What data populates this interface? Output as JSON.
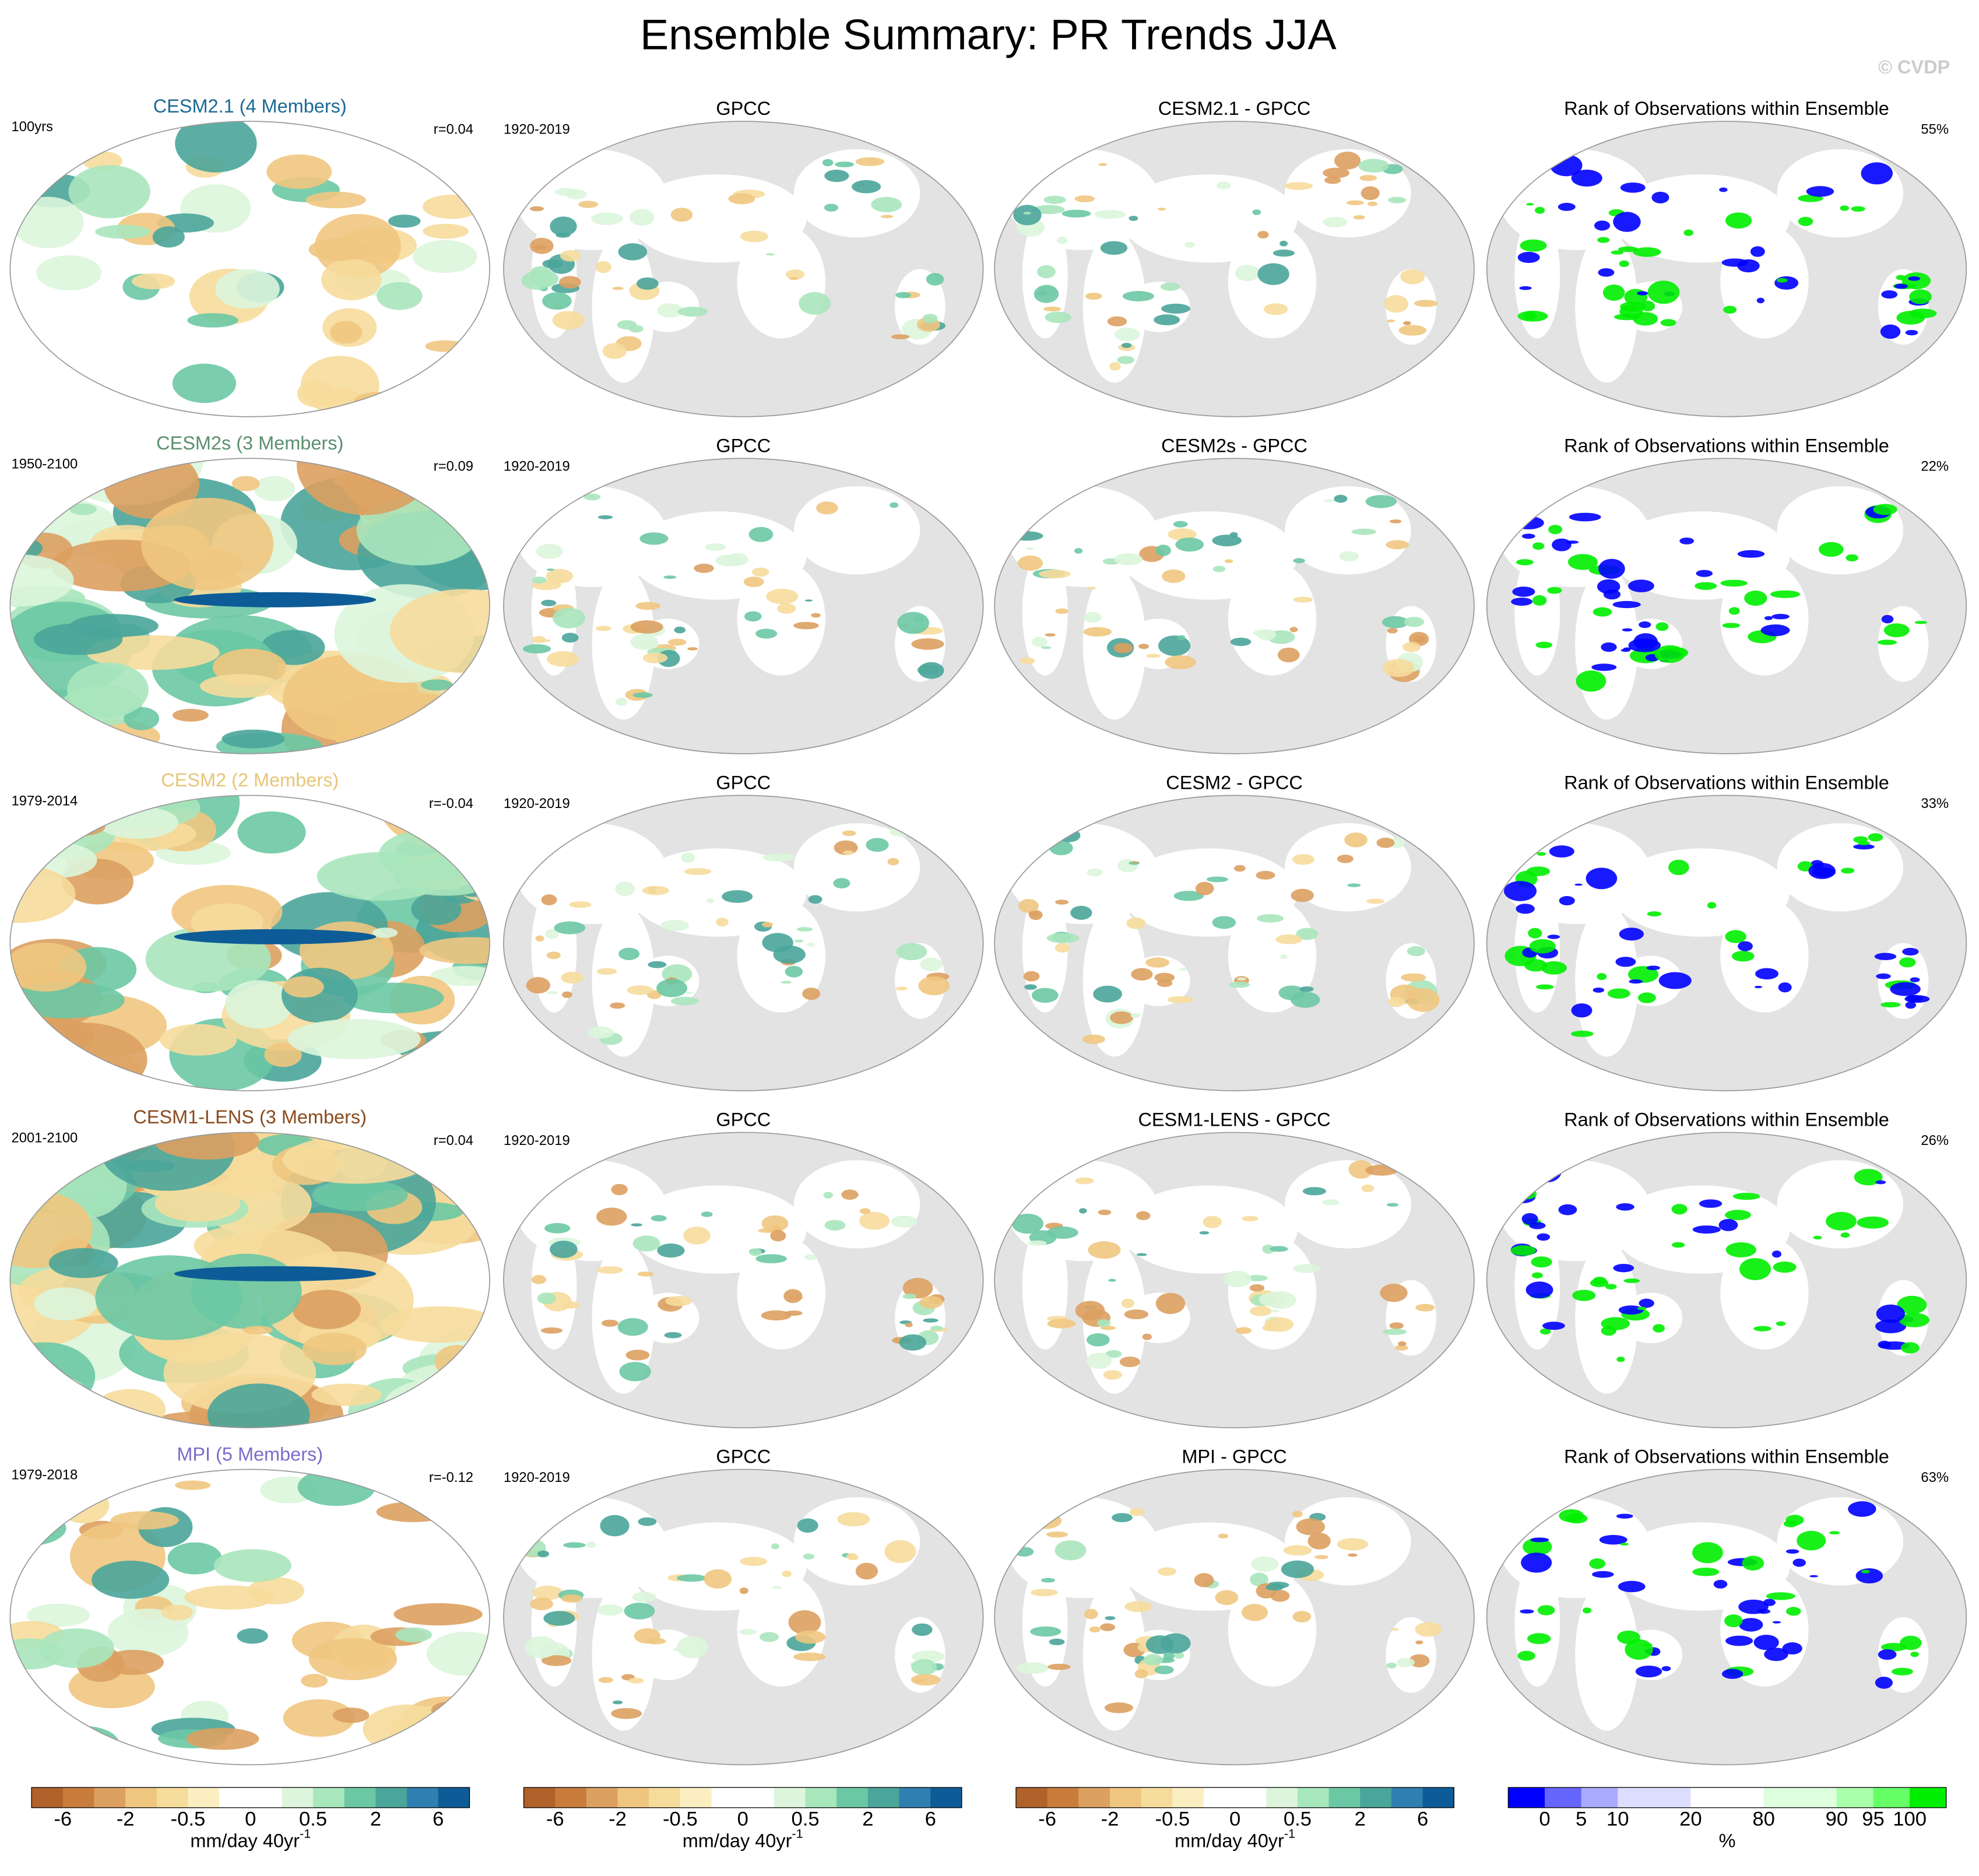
{
  "header": {
    "title": "Ensemble Summary: PR Trends JJA",
    "watermark": "© CVDP"
  },
  "rows": [
    {
      "model_title": "CESM2.1 (4 Members)",
      "title_color": "#1b6a93",
      "period": "100yrs",
      "correlation": "r=0.04",
      "obs_title": "GPCC",
      "obs_period": "1920-2019",
      "diff_title": "CESM2.1 - GPCC",
      "rank_title": "Rank of Observations within Ensemble",
      "rank_percent": "55%"
    },
    {
      "model_title": "CESM2s (3 Members)",
      "title_color": "#5a8f6e",
      "period": "1950-2100",
      "correlation": "r=0.09",
      "obs_title": "GPCC",
      "obs_period": "1920-2019",
      "diff_title": "CESM2s - GPCC",
      "rank_title": "Rank of Observations within Ensemble",
      "rank_percent": "22%"
    },
    {
      "model_title": "CESM2 (2 Members)",
      "title_color": "#e6c678",
      "period": "1979-2014",
      "correlation": "r=-0.04",
      "obs_title": "GPCC",
      "obs_period": "1920-2019",
      "diff_title": "CESM2 - GPCC",
      "rank_title": "Rank of Observations within Ensemble",
      "rank_percent": "33%"
    },
    {
      "model_title": "CESM1-LENS (3 Members)",
      "title_color": "#8a4a1c",
      "period": "2001-2100",
      "correlation": "r=0.04",
      "obs_title": "GPCC",
      "obs_period": "1920-2019",
      "diff_title": "CESM1-LENS - GPCC",
      "rank_title": "Rank of Observations within Ensemble",
      "rank_percent": "26%"
    },
    {
      "model_title": "MPI (5 Members)",
      "title_color": "#7c6cc9",
      "period": "1979-2018",
      "correlation": "r=-0.12",
      "obs_title": "GPCC",
      "obs_period": "1920-2019",
      "diff_title": "MPI - GPCC",
      "rank_title": "Rank of Observations within Ensemble",
      "rank_percent": "63%"
    }
  ],
  "colorbars": [
    {
      "labels": [
        "-6",
        "-2",
        "-0.5",
        "0",
        "0.5",
        "2",
        "6"
      ],
      "unit": "mm/day 40yr",
      "unit_exponent": "-1"
    },
    {
      "labels": [
        "-6",
        "-2",
        "-0.5",
        "0",
        "0.5",
        "2",
        "6"
      ],
      "unit": "mm/day 40yr",
      "unit_exponent": "-1"
    },
    {
      "labels": [
        "-6",
        "-2",
        "-0.5",
        "0",
        "0.5",
        "2",
        "6"
      ],
      "unit": "mm/day 40yr",
      "unit_exponent": "-1"
    },
    {
      "labels": [
        "0",
        "5",
        "10",
        "20",
        "80",
        "90",
        "95",
        "100"
      ],
      "unit": "%"
    }
  ]
}
